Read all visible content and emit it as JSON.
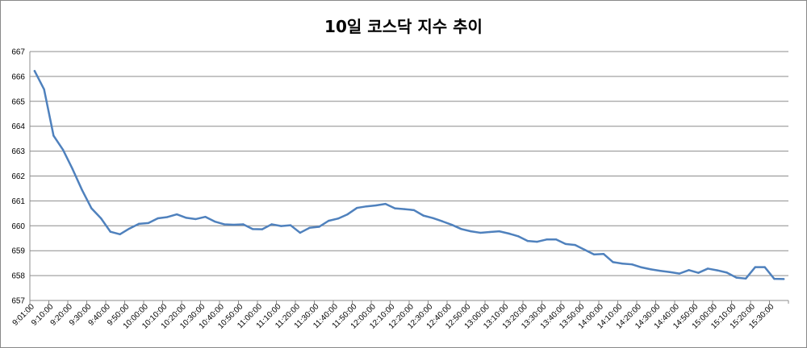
{
  "chart_data": {
    "type": "line",
    "title": "10일 코스닥 지수 추이",
    "xlabel": "",
    "ylabel": "",
    "ylim": [
      657,
      667
    ],
    "yticks": [
      657,
      658,
      659,
      660,
      661,
      662,
      663,
      664,
      665,
      666,
      667
    ],
    "grid": true,
    "legend": "none",
    "line_color": "#4f81bd",
    "x": [
      "9:01:00",
      "9:05:00",
      "9:10:00",
      "9:15:00",
      "9:20:00",
      "9:25:00",
      "9:30:00",
      "9:35:00",
      "9:40:00",
      "9:45:00",
      "9:50:00",
      "9:55:00",
      "10:00:00",
      "10:05:00",
      "10:10:00",
      "10:15:00",
      "10:20:00",
      "10:25:00",
      "10:30:00",
      "10:35:00",
      "10:40:00",
      "10:45:00",
      "10:50:00",
      "10:55:00",
      "11:00:00",
      "11:05:00",
      "11:10:00",
      "11:15:00",
      "11:20:00",
      "11:25:00",
      "11:30:00",
      "11:35:00",
      "11:40:00",
      "11:45:00",
      "11:50:00",
      "11:55:00",
      "12:00:00",
      "12:05:00",
      "12:10:00",
      "12:15:00",
      "12:20:00",
      "12:25:00",
      "12:30:00",
      "12:35:00",
      "12:40:00",
      "12:45:00",
      "12:50:00",
      "12:55:00",
      "13:00:00",
      "13:05:00",
      "13:10:00",
      "13:15:00",
      "13:20:00",
      "13:25:00",
      "13:30:00",
      "13:35:00",
      "13:40:00",
      "13:45:00",
      "13:50:00",
      "13:55:00",
      "14:00:00",
      "14:05:00",
      "14:10:00",
      "14:15:00",
      "14:20:00",
      "14:25:00",
      "14:30:00",
      "14:35:00",
      "14:40:00",
      "14:45:00",
      "14:50:00",
      "14:55:00",
      "15:00:00",
      "15:05:00",
      "15:10:00",
      "15:15:00",
      "15:20:00",
      "15:25:00",
      "15:30:00",
      "15:35:00"
    ],
    "x_tick_labels": [
      "9:01:00",
      "9:10:00",
      "9:20:00",
      "9:30:00",
      "9:40:00",
      "9:50:00",
      "10:00:00",
      "10:10:00",
      "10:20:00",
      "10:30:00",
      "10:40:00",
      "10:50:00",
      "11:00:00",
      "11:10:00",
      "11:20:00",
      "11:30:00",
      "11:40:00",
      "11:50:00",
      "12:00:00",
      "12:10:00",
      "12:20:00",
      "12:30:00",
      "12:40:00",
      "12:50:00",
      "13:00:00",
      "13:10:00",
      "13:20:00",
      "13:30:00",
      "13:40:00",
      "13:50:00",
      "14:00:00",
      "14:10:00",
      "14:20:00",
      "14:30:00",
      "14:40:00",
      "14:50:00",
      "15:00:00",
      "15:10:00",
      "15:20:00",
      "15:30:00"
    ],
    "values": [
      666.22,
      665.48,
      663.62,
      663.05,
      662.28,
      661.44,
      660.7,
      660.3,
      659.76,
      659.66,
      659.89,
      660.08,
      660.11,
      660.3,
      660.35,
      660.46,
      660.32,
      660.27,
      660.36,
      660.17,
      660.06,
      660.04,
      660.06,
      659.87,
      659.86,
      660.06,
      659.99,
      660.02,
      659.72,
      659.92,
      659.96,
      660.2,
      660.29,
      660.46,
      660.72,
      660.78,
      660.82,
      660.88,
      660.7,
      660.67,
      660.63,
      660.41,
      660.31,
      660.18,
      660.04,
      659.87,
      659.78,
      659.72,
      659.75,
      659.78,
      659.69,
      659.58,
      659.39,
      659.36,
      659.45,
      659.45,
      659.27,
      659.23,
      659.04,
      658.85,
      658.87,
      658.54,
      658.48,
      658.45,
      658.33,
      658.25,
      658.19,
      658.14,
      658.08,
      658.22,
      658.11,
      658.28,
      658.21,
      658.12,
      657.92,
      657.88,
      658.34,
      658.34,
      657.87,
      657.86
    ]
  }
}
